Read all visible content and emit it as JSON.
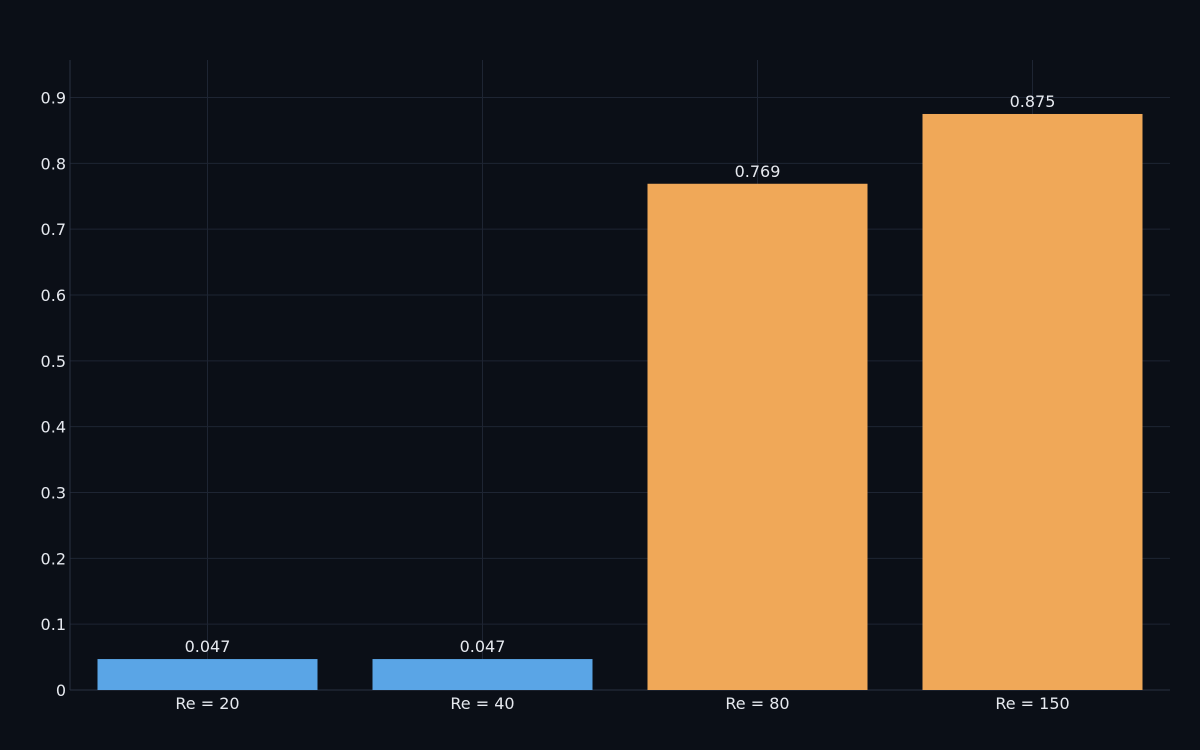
{
  "chart_data": {
    "type": "bar",
    "title": "",
    "xlabel": "",
    "ylabel": "",
    "categories": [
      "Re = 20",
      "Re = 40",
      "Re = 80",
      "Re = 150"
    ],
    "values": [
      0.047,
      0.047,
      0.769,
      0.875
    ],
    "value_labels": [
      "0.047",
      "0.047",
      "0.769",
      "0.875"
    ],
    "bar_colors": [
      "#5aa5e6",
      "#5aa5e6",
      "#f0a858",
      "#f0a858"
    ],
    "ylim": [
      0,
      0.957
    ],
    "yticks": [
      0,
      0.1,
      0.2,
      0.3,
      0.4,
      0.5,
      0.6,
      0.7,
      0.8,
      0.9
    ],
    "ytick_labels": [
      "0",
      "0.1",
      "0.2",
      "0.3",
      "0.4",
      "0.5",
      "0.6",
      "0.7",
      "0.8",
      "0.9"
    ],
    "grid": true,
    "legend": "none",
    "colors": {
      "background": "#0b0f17",
      "grid": "#1e2533",
      "text": "#e6e9ef"
    }
  }
}
